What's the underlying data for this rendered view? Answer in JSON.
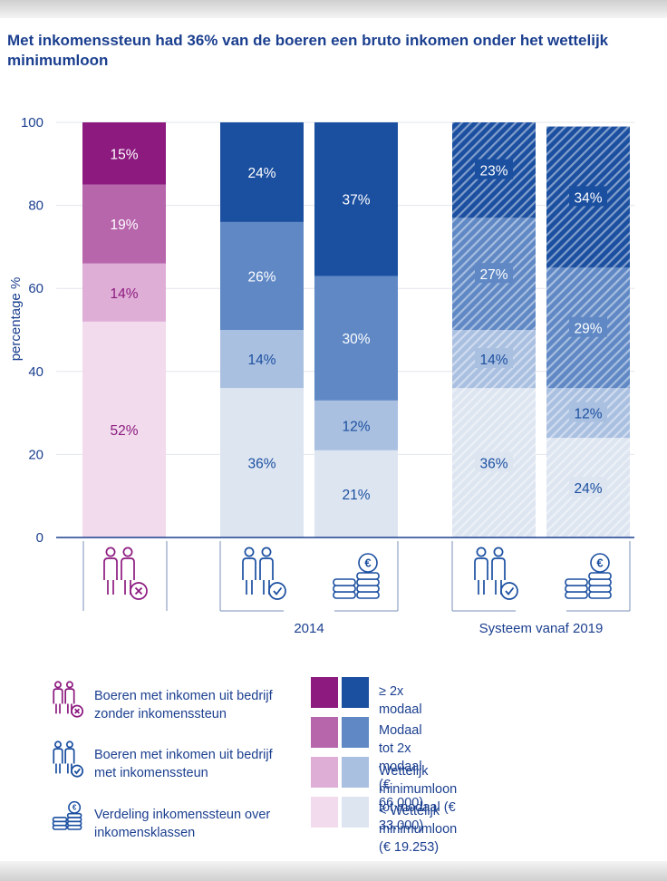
{
  "title": "Met inkomenssteun had 36% van de boeren een bruto inkomen onder het wettelijk minimumloon",
  "chart_data": {
    "type": "bar",
    "stacked": true,
    "ylabel": "percentage %",
    "ylim": [
      0,
      100
    ],
    "yticks": [
      "0",
      "20",
      "40",
      "60",
      "80",
      "100"
    ],
    "groups": [
      "",
      "2014",
      "Systeem vanaf 2019"
    ],
    "bars": [
      {
        "group": "",
        "icon": "farmers-without-support-icon",
        "hatched": false,
        "palette": "purple",
        "segments": [
          52,
          14,
          19,
          15
        ],
        "labels": [
          "52%",
          "14%",
          "19%",
          "15%"
        ]
      },
      {
        "group": "2014",
        "icon": "farmers-with-support-icon",
        "hatched": false,
        "palette": "blue",
        "segments": [
          36,
          14,
          26,
          24
        ],
        "labels": [
          "36%",
          "14%",
          "26%",
          "24%"
        ]
      },
      {
        "group": "2014",
        "icon": "coins-icon",
        "hatched": false,
        "palette": "blue",
        "segments": [
          21,
          12,
          30,
          37
        ],
        "labels": [
          "21%",
          "12%",
          "30%",
          "37%"
        ]
      },
      {
        "group": "Systeem vanaf 2019",
        "icon": "farmers-with-support-icon",
        "hatched": true,
        "palette": "blue",
        "segments": [
          36,
          14,
          27,
          23
        ],
        "labels": [
          "36%",
          "14%",
          "27%",
          "23%"
        ]
      },
      {
        "group": "Systeem vanaf 2019",
        "icon": "coins-icon",
        "hatched": true,
        "palette": "blue",
        "segments": [
          24,
          12,
          29,
          34
        ],
        "labels": [
          "24%",
          "12%",
          "29%",
          "34%"
        ]
      }
    ],
    "series": [
      {
        "name": "< Wettelijk minimumloon (€ 19.253)",
        "purple": "#f1dbec",
        "blue": "#dde5f1",
        "label_dark": true
      },
      {
        "name": "Wettelijk minimumloon tot modaal (€ 33.000)",
        "purple": "#dfaed6",
        "blue": "#aac0e1",
        "label_dark": true
      },
      {
        "name": "Modaal tot 2x modaal (€ 66.000)",
        "purple": "#b766ac",
        "blue": "#5f88c5",
        "label_dark": false
      },
      {
        "name": "≥ 2x modaal",
        "purple": "#8c1a7f",
        "blue": "#1b4fa0",
        "label_dark": false
      }
    ],
    "colors": {
      "axis": "#1b3f8f",
      "gridline": "#e2e6ee",
      "label_dark_purple": "#8c1a7f",
      "label_dark_blue": "#1b4fa0"
    }
  },
  "legend": {
    "items": [
      {
        "icon": "farmers-without-support-icon",
        "text": "Boeren met inkomen uit bedrijf zonder inkomenssteun"
      },
      {
        "icon": "farmers-with-support-icon",
        "text": "Boeren met inkomen uit bedrijf met inkomenssteun"
      },
      {
        "icon": "coins-icon",
        "text": "Verdeling inkomenssteun over inkomensklassen"
      }
    ],
    "classes": [
      {
        "label": "≥ 2x modaal",
        "purple": "#8c1a7f",
        "blue": "#1b4fa0"
      },
      {
        "label": "Modaal tot 2x modaal (€ 66.000)",
        "purple": "#b766ac",
        "blue": "#5f88c5"
      },
      {
        "label": "Wettelijk minimumloon tot modaal (€ 33.000)",
        "purple": "#dfaed6",
        "blue": "#aac0e1"
      },
      {
        "label": "< Wettelijk minimumloon (€ 19.253)",
        "purple": "#f1dbec",
        "blue": "#dde5f1"
      }
    ]
  }
}
